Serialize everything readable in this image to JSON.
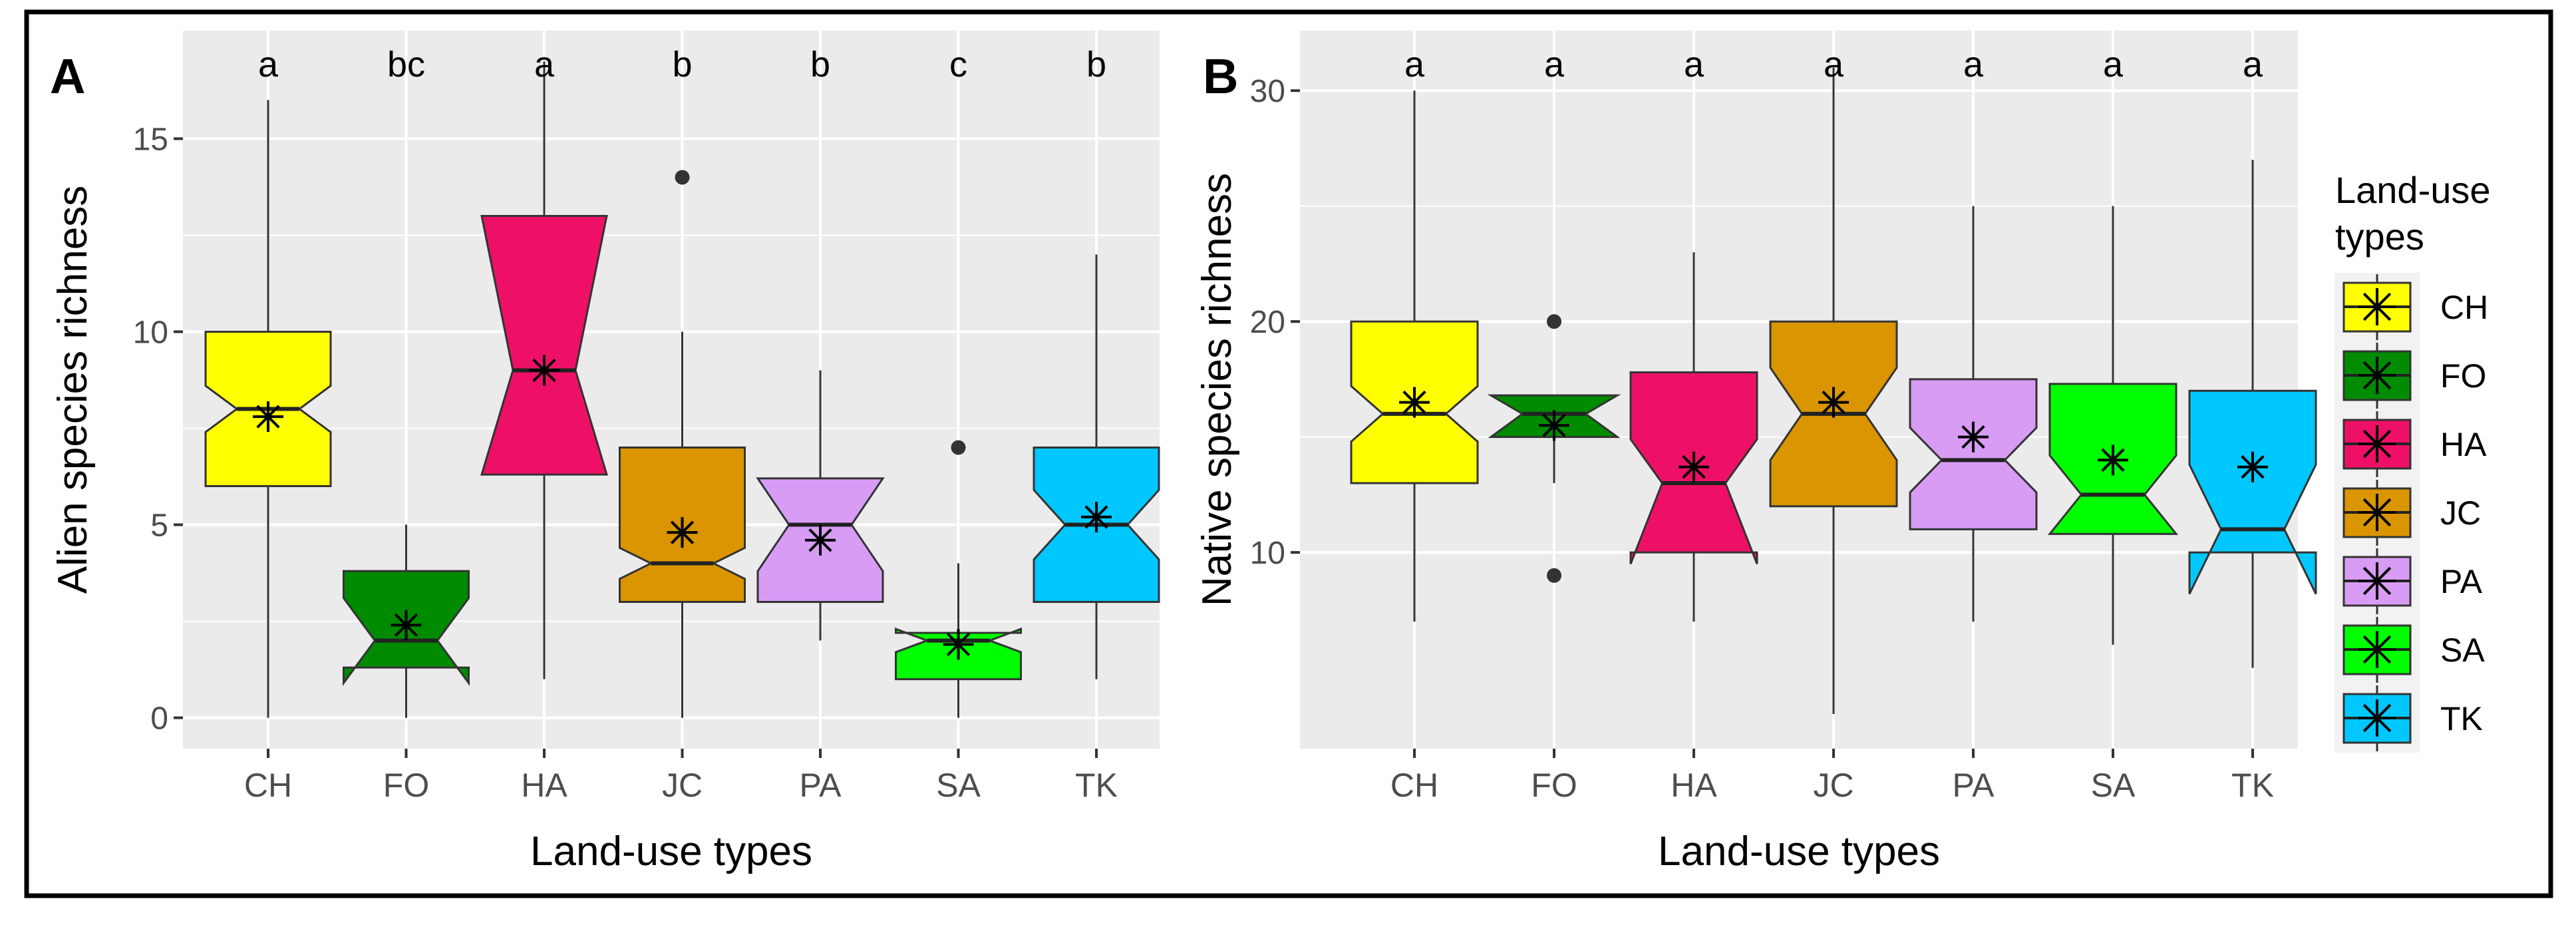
{
  "figure": {
    "legend": {
      "title_line1": "Land-use",
      "title_line2": " types",
      "items": [
        {
          "label": "CH",
          "color": "#FFFF00"
        },
        {
          "label": "FO",
          "color": "#008B00"
        },
        {
          "label": "HA",
          "color": "#EE1066"
        },
        {
          "label": "JC",
          "color": "#DA9500"
        },
        {
          "label": "PA",
          "color": "#D89CF5"
        },
        {
          "label": "SA",
          "color": "#00FF00"
        },
        {
          "label": "TK",
          "color": "#00C8FF"
        }
      ]
    }
  },
  "chart_data": [
    {
      "panel": "A",
      "type": "boxplot",
      "notched": true,
      "xlabel": "Land-use types",
      "ylabel": "Alien species richness",
      "ylim": [
        -0.8,
        17.8
      ],
      "yticks": [
        0,
        5,
        10,
        15
      ],
      "yticklabels": [
        "0",
        "5",
        "10",
        "15"
      ],
      "categories": [
        "CH",
        "FO",
        "HA",
        "JC",
        "PA",
        "SA",
        "TK"
      ],
      "colors": [
        "#FFFF00",
        "#008B00",
        "#EE1066",
        "#DA9500",
        "#D89CF5",
        "#00FF00",
        "#00C8FF"
      ],
      "letters": [
        "a",
        "bc",
        "a",
        "b",
        "b",
        "c",
        "b"
      ],
      "boxes": [
        {
          "category": "CH",
          "whisker_low": 0,
          "q1": 6,
          "median": 8,
          "q3": 10,
          "whisker_high": 16,
          "notch_low": 7.4,
          "notch_high": 8.6,
          "mean": 7.8,
          "outliers": []
        },
        {
          "category": "FO",
          "whisker_low": 0,
          "q1": 1.3,
          "median": 2,
          "q3": 3.8,
          "whisker_high": 5,
          "notch_low": 0.9,
          "notch_high": 3.1,
          "mean": 2.4,
          "outliers": []
        },
        {
          "category": "HA",
          "whisker_low": 1,
          "q1": 6.3,
          "median": 9,
          "q3": 13,
          "whisker_high": 17,
          "notch_low": 6.3,
          "notch_high": 13,
          "mean": 9,
          "outliers": []
        },
        {
          "category": "JC",
          "whisker_low": 0,
          "q1": 3,
          "median": 4,
          "q3": 7,
          "whisker_high": 10,
          "notch_low": 3.6,
          "notch_high": 4.4,
          "mean": 4.8,
          "outliers": [
            14
          ]
        },
        {
          "category": "PA",
          "whisker_low": 2,
          "q1": 3,
          "median": 5,
          "q3": 6.2,
          "whisker_high": 9,
          "notch_low": 3.8,
          "notch_high": 6.2,
          "mean": 4.6,
          "outliers": []
        },
        {
          "category": "SA",
          "whisker_low": 0,
          "q1": 1,
          "median": 2,
          "q3": 2.2,
          "whisker_high": 4,
          "notch_low": 1.7,
          "notch_high": 2.3,
          "mean": 1.9,
          "outliers": [
            7
          ]
        },
        {
          "category": "TK",
          "whisker_low": 1,
          "q1": 3,
          "median": 5,
          "q3": 7,
          "whisker_high": 12,
          "notch_low": 4.1,
          "notch_high": 5.9,
          "mean": 5.2,
          "outliers": []
        }
      ]
    },
    {
      "panel": "B",
      "type": "boxplot",
      "notched": true,
      "xlabel": "Land-use types",
      "ylabel": "Native species richness",
      "ylim": [
        1.5,
        32.6
      ],
      "yticks": [
        10,
        20,
        30
      ],
      "yticklabels": [
        "10",
        "20",
        "30"
      ],
      "categories": [
        "CH",
        "FO",
        "HA",
        "JC",
        "PA",
        "SA",
        "TK"
      ],
      "colors": [
        "#FFFF00",
        "#008B00",
        "#EE1066",
        "#DA9500",
        "#D89CF5",
        "#00FF00",
        "#00C8FF"
      ],
      "letters": [
        "a",
        "a",
        "a",
        "a",
        "a",
        "a",
        "a"
      ],
      "boxes": [
        {
          "category": "CH",
          "whisker_low": 7,
          "q1": 13,
          "median": 16,
          "q3": 20,
          "whisker_high": 30,
          "notch_low": 14.8,
          "notch_high": 17.2,
          "mean": 16.5,
          "outliers": []
        },
        {
          "category": "FO",
          "whisker_low": 13,
          "q1": 15,
          "median": 16,
          "q3": 16.8,
          "whisker_high": 16.8,
          "notch_low": 15,
          "notch_high": 16.8,
          "mean": 15.5,
          "outliers": [
            9,
            20
          ]
        },
        {
          "category": "HA",
          "whisker_low": 7,
          "q1": 10,
          "median": 13,
          "q3": 17.8,
          "whisker_high": 23,
          "notch_low": 9.5,
          "notch_high": 14.9,
          "mean": 13.7,
          "outliers": []
        },
        {
          "category": "JC",
          "whisker_low": 3,
          "q1": 12,
          "median": 16,
          "q3": 20,
          "whisker_high": 31,
          "notch_low": 14,
          "notch_high": 18,
          "mean": 16.5,
          "outliers": []
        },
        {
          "category": "PA",
          "whisker_low": 7,
          "q1": 11,
          "median": 14,
          "q3": 17.5,
          "whisker_high": 25,
          "notch_low": 12.6,
          "notch_high": 15.4,
          "mean": 15,
          "outliers": []
        },
        {
          "category": "SA",
          "whisker_low": 6,
          "q1": 10.8,
          "median": 12.5,
          "q3": 17.3,
          "whisker_high": 25,
          "notch_low": 10.8,
          "notch_high": 14.2,
          "mean": 14,
          "outliers": []
        },
        {
          "category": "TK",
          "whisker_low": 5,
          "q1": 10,
          "median": 11,
          "q3": 17,
          "whisker_high": 27,
          "notch_low": 8.2,
          "notch_high": 13.8,
          "mean": 13.7,
          "outliers": []
        }
      ]
    }
  ]
}
